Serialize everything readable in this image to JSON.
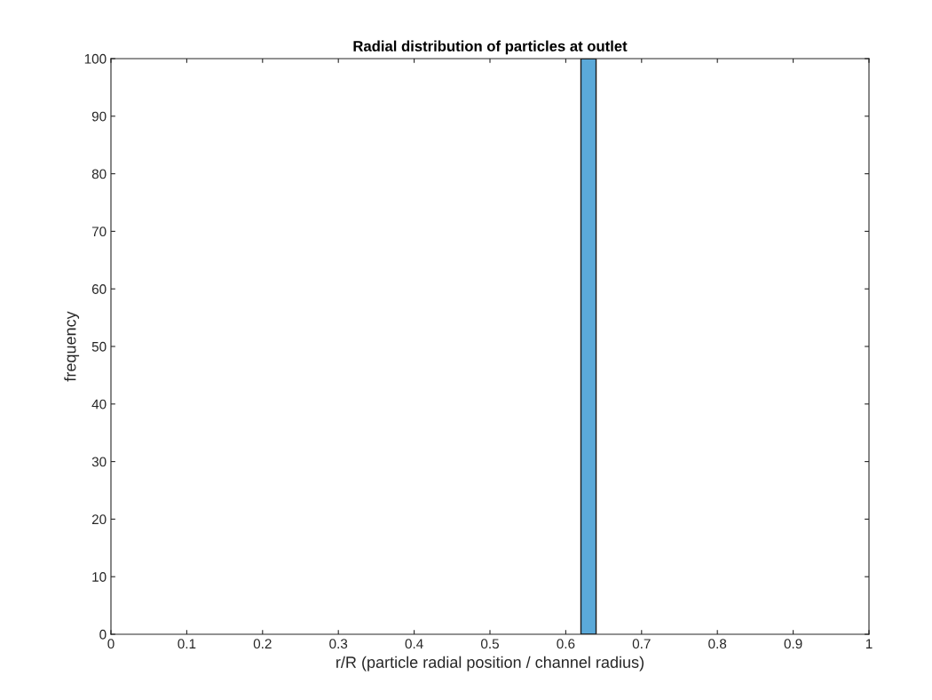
{
  "chart_data": {
    "type": "histogram",
    "title": "Radial distribution of particles at outlet",
    "xlabel": "r/R (particle radial position / channel radius)",
    "ylabel": "frequency",
    "bins": [
      0.62,
      0.64
    ],
    "values": [
      100
    ],
    "color": "#5ba9d9",
    "xlim": [
      0,
      1
    ],
    "xticks": [
      0,
      0.1,
      0.2,
      0.3,
      0.4,
      0.5,
      0.6,
      0.7,
      0.8,
      0.9,
      1
    ],
    "ylim": [
      0,
      100
    ],
    "yticks": [
      0,
      10,
      20,
      30,
      40,
      50,
      60,
      70,
      80,
      90,
      100
    ],
    "grid": false,
    "legend": false
  }
}
